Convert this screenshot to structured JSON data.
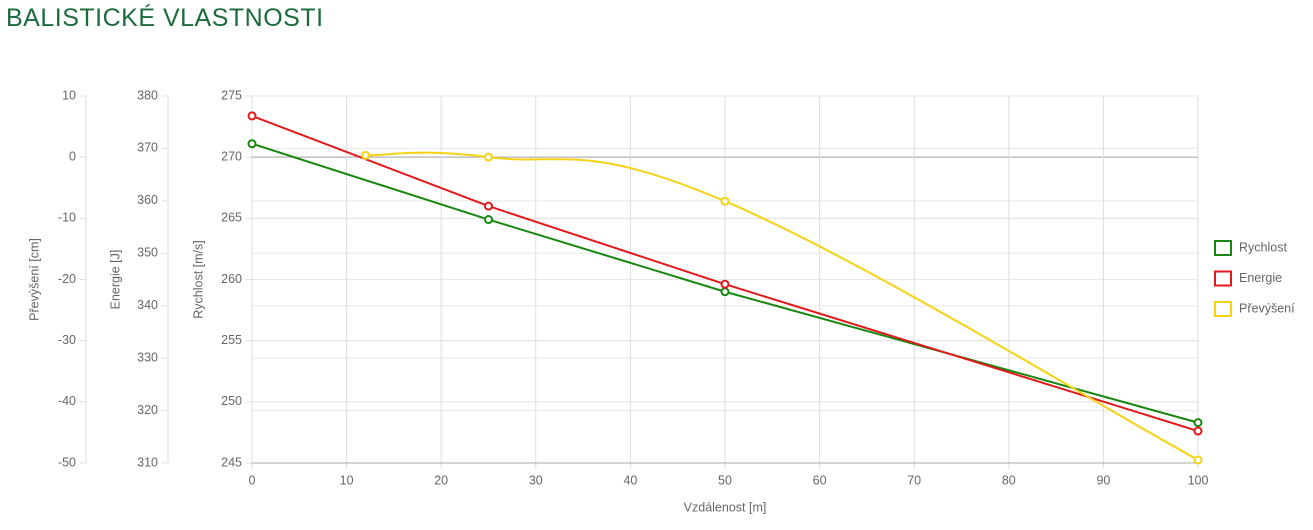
{
  "title": "BALISTICKÉ VLASTNOSTI",
  "chart_data": {
    "type": "line",
    "xlabel": "Vzdálenost [m]",
    "xlim": [
      0,
      100
    ],
    "xticks": [
      0,
      10,
      20,
      30,
      40,
      50,
      60,
      70,
      80,
      90,
      100
    ],
    "ylabel": "Rychlost [m/s]",
    "ylim": [
      245,
      275
    ],
    "yticks": [
      245,
      250,
      255,
      260,
      265,
      270,
      275
    ],
    "y2label": "Energie [J]",
    "y2lim": [
      310,
      380
    ],
    "y2ticks": [
      310,
      320,
      330,
      340,
      350,
      360,
      370,
      380
    ],
    "y3label": "Převýšení [cm]",
    "y3lim": [
      -50,
      10
    ],
    "y3ticks": [
      -50,
      -40,
      -30,
      -20,
      -10,
      0,
      10
    ],
    "grid": true,
    "legend_position": "right",
    "series": [
      {
        "name": "Rychlost",
        "color": "#17870f",
        "axis": "y",
        "smooth": false,
        "x": [
          0,
          25,
          50,
          100
        ],
        "values": [
          271.1,
          264.9,
          259.0,
          248.3
        ]
      },
      {
        "name": "Energie",
        "color": "#e0191b",
        "axis": "y2",
        "smooth": false,
        "x": [
          0,
          25,
          50,
          100
        ],
        "values": [
          376.2,
          359.0,
          344.1,
          316.1
        ]
      },
      {
        "name": "Převýšení",
        "color": "#f5d214",
        "axis": "y3",
        "smooth": true,
        "x": [
          12,
          25,
          50,
          100
        ],
        "values": [
          0.3,
          0,
          -7.2,
          -49.5
        ]
      }
    ]
  }
}
